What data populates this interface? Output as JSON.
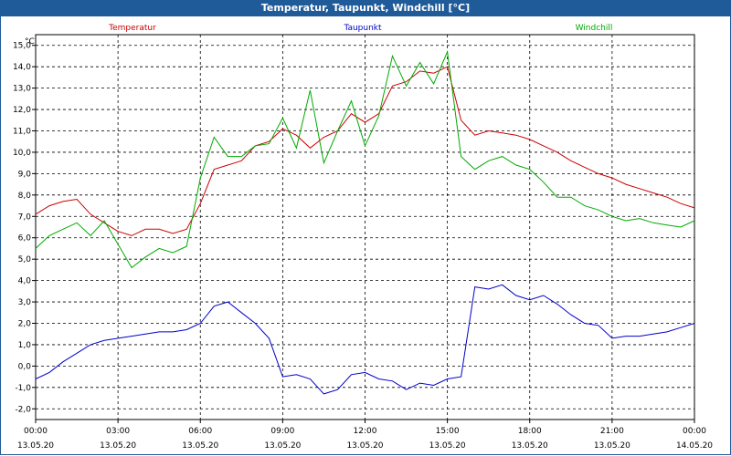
{
  "window": {
    "title": "Temperatur, Taupunkt, Windchill [°C]"
  },
  "chart_data": {
    "type": "line",
    "title": "Temperatur, Taupunkt, Windchill [°C]",
    "ylabel": "°C",
    "ylim": [
      -2.5,
      15.5
    ],
    "xlim": [
      0,
      24
    ],
    "grid": true,
    "legend_position": "top",
    "x_ticks": [
      {
        "time": "00:00",
        "date": "13.05.20"
      },
      {
        "time": "03:00",
        "date": "13.05.20"
      },
      {
        "time": "06:00",
        "date": "13.05.20"
      },
      {
        "time": "09:00",
        "date": "13.05.20"
      },
      {
        "time": "12:00",
        "date": "13.05.20"
      },
      {
        "time": "15:00",
        "date": "13.05.20"
      },
      {
        "time": "18:00",
        "date": "13.05.20"
      },
      {
        "time": "21:00",
        "date": "13.05.20"
      },
      {
        "time": "00:00",
        "date": "14.05.20"
      }
    ],
    "y_ticks": [
      "-2,0",
      "-1,0",
      "0,0",
      "1,0",
      "2,0",
      "3,0",
      "4,0",
      "5,0",
      "6,0",
      "7,0",
      "8,0",
      "9,0",
      "10,0",
      "11,0",
      "12,0",
      "13,0",
      "14,0",
      "15,0"
    ],
    "series": [
      {
        "name": "Temperatur",
        "color": "#cc0000",
        "x": [
          0,
          0.5,
          1,
          1.5,
          2,
          2.5,
          3,
          3.5,
          4,
          4.5,
          5,
          5.5,
          6,
          6.5,
          7,
          7.5,
          8,
          8.5,
          9,
          9.5,
          10,
          10.5,
          11,
          11.5,
          12,
          12.5,
          13,
          13.5,
          14,
          14.5,
          15,
          15.5,
          16,
          16.5,
          17,
          17.5,
          18,
          18.5,
          19,
          19.5,
          20,
          20.5,
          21,
          21.5,
          22,
          22.5,
          23,
          23.5,
          24
        ],
        "values": [
          7.1,
          7.5,
          7.7,
          7.8,
          7.1,
          6.7,
          6.3,
          6.1,
          6.4,
          6.4,
          6.2,
          6.4,
          7.6,
          9.2,
          9.4,
          9.6,
          10.3,
          10.5,
          11.1,
          10.8,
          10.2,
          10.7,
          11.0,
          11.8,
          11.4,
          11.8,
          13.1,
          13.3,
          13.8,
          13.7,
          14.0,
          11.5,
          10.8,
          11.0,
          10.9,
          10.8,
          10.6,
          10.3,
          10.0,
          9.6,
          9.3,
          9.0,
          8.8,
          8.5,
          8.3,
          8.1,
          7.9,
          7.6,
          7.4
        ],
        "legend_label": "Temperatur"
      },
      {
        "name": "Taupunkt",
        "color": "#0000cc",
        "x": [
          0,
          0.5,
          1,
          1.5,
          2,
          2.5,
          3,
          3.5,
          4,
          4.5,
          5,
          5.5,
          6,
          6.5,
          7,
          7.5,
          8,
          8.5,
          9,
          9.5,
          10,
          10.5,
          11,
          11.5,
          12,
          12.5,
          13,
          13.5,
          14,
          14.5,
          15,
          15.5,
          16,
          16.5,
          17,
          17.5,
          18,
          18.5,
          19,
          19.5,
          20,
          20.5,
          21,
          21.5,
          22,
          22.5,
          23,
          23.5,
          24
        ],
        "values": [
          -0.6,
          -0.3,
          0.2,
          0.6,
          1.0,
          1.2,
          1.3,
          1.4,
          1.5,
          1.6,
          1.6,
          1.7,
          2.0,
          2.8,
          3.0,
          2.5,
          2.0,
          1.3,
          -0.5,
          -0.4,
          -0.6,
          -1.3,
          -1.1,
          -0.4,
          -0.3,
          -0.6,
          -0.7,
          -1.1,
          -0.8,
          -0.9,
          -0.6,
          -0.5,
          3.7,
          3.6,
          3.8,
          3.3,
          3.1,
          3.3,
          2.9,
          2.4,
          2.0,
          1.9,
          1.3,
          1.4,
          1.4,
          1.5,
          1.6,
          1.8,
          2.0
        ],
        "legend_label": "Taupunkt"
      },
      {
        "name": "Windchill",
        "color": "#00aa00",
        "x": [
          0,
          0.5,
          1,
          1.5,
          2,
          2.5,
          3,
          3.5,
          4,
          4.5,
          5,
          5.5,
          6,
          6.5,
          7,
          7.5,
          8,
          8.5,
          9,
          9.5,
          10,
          10.5,
          11,
          11.5,
          12,
          12.5,
          13,
          13.5,
          14,
          14.5,
          15,
          15.5,
          16,
          16.5,
          17,
          17.5,
          18,
          18.5,
          19,
          19.5,
          20,
          20.5,
          21,
          21.5,
          22,
          22.5,
          23,
          23.5,
          24
        ],
        "values": [
          5.5,
          6.1,
          6.4,
          6.7,
          6.1,
          6.8,
          5.7,
          4.6,
          5.1,
          5.5,
          5.3,
          5.6,
          8.8,
          10.7,
          9.8,
          9.8,
          10.3,
          10.4,
          11.6,
          10.2,
          12.9,
          9.5,
          11.0,
          12.4,
          10.3,
          11.7,
          14.5,
          13.1,
          14.2,
          13.2,
          14.7,
          9.8,
          9.2,
          9.6,
          9.8,
          9.4,
          9.2,
          8.6,
          7.9,
          7.9,
          7.5,
          7.3,
          7.0,
          6.8,
          6.9,
          6.7,
          6.6,
          6.5,
          6.8
        ],
        "legend_label": "Windchill"
      }
    ]
  }
}
